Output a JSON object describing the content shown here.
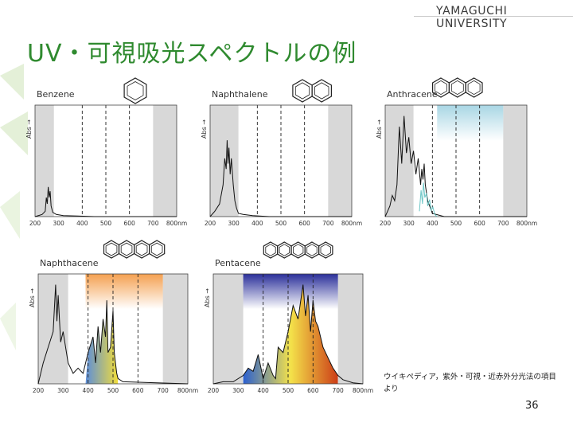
{
  "header": {
    "organization": "YAMAGUCHI UNIVERSITY"
  },
  "slide": {
    "title": "UV・可視吸光スペクトルの例",
    "source_note": "ウイキペディア，紫外・可視・近赤外分光法の項目より",
    "page_number": "36"
  },
  "colors": {
    "title": "#2f8a2f",
    "leaf": "#e4f0d8",
    "shade": "#d8d8d8"
  },
  "chart_data": [
    {
      "type": "line",
      "title": "Benzene",
      "ylabel": "Abs →",
      "xlabel": "",
      "x_ticks": [
        "200",
        "300",
        "400",
        "500",
        "600",
        "700",
        "800nm"
      ],
      "xlim": [
        200,
        800
      ],
      "shaded_ranges": [
        [
          200,
          280
        ],
        [
          700,
          800
        ]
      ],
      "dashed_lines": [
        400,
        500,
        600
      ],
      "color_bands": [],
      "series": [
        {
          "x": [
            200,
            230,
            243,
            248,
            252,
            256,
            260,
            264,
            268,
            275,
            290,
            320,
            380,
            450,
            550,
            650,
            750,
            800
          ],
          "y": [
            0,
            0.02,
            0.05,
            0.18,
            0.12,
            0.28,
            0.18,
            0.24,
            0.1,
            0.04,
            0.02,
            0.01,
            0.005,
            0,
            0,
            0,
            0,
            0
          ]
        }
      ],
      "fills": []
    },
    {
      "type": "line",
      "title": "Naphthalene",
      "ylabel": "Abs →",
      "xlabel": "",
      "x_ticks": [
        "200",
        "300",
        "400",
        "500",
        "600",
        "700",
        "800nm"
      ],
      "xlim": [
        200,
        800
      ],
      "shaded_ranges": [
        [
          200,
          320
        ],
        [
          700,
          800
        ]
      ],
      "dashed_lines": [
        400,
        500,
        600
      ],
      "color_bands": [],
      "series": [
        {
          "x": [
            200,
            220,
            240,
            255,
            262,
            268,
            272,
            276,
            280,
            285,
            290,
            298,
            305,
            312,
            320,
            340,
            380,
            450,
            550,
            800
          ],
          "y": [
            0,
            0.05,
            0.12,
            0.3,
            0.55,
            0.45,
            0.72,
            0.5,
            0.65,
            0.4,
            0.55,
            0.3,
            0.15,
            0.08,
            0.03,
            0.02,
            0.01,
            0,
            0,
            0
          ]
        }
      ],
      "fills": []
    },
    {
      "type": "line",
      "title": "Anthracene",
      "ylabel": "Abs →",
      "xlabel": "",
      "x_ticks": [
        "200",
        "300",
        "400",
        "500",
        "600",
        "700",
        "800nm"
      ],
      "xlim": [
        200,
        800
      ],
      "shaded_ranges": [
        [
          200,
          320
        ],
        [
          700,
          800
        ]
      ],
      "dashed_lines": [
        400,
        500,
        600
      ],
      "color_bands": [
        {
          "range": [
            420,
            700
          ],
          "color": "#a8d6e4",
          "direction": "down"
        }
      ],
      "series": [
        {
          "x": [
            200,
            210,
            220,
            230,
            240,
            250,
            260,
            270,
            280,
            290,
            300,
            310,
            320,
            330,
            340,
            350,
            355,
            360,
            365,
            370,
            380,
            400,
            450,
            800
          ],
          "y": [
            0,
            0.05,
            0.1,
            0.2,
            0.15,
            0.3,
            0.85,
            0.5,
            0.95,
            0.6,
            0.75,
            0.5,
            0.62,
            0.4,
            0.55,
            0.3,
            0.45,
            0.35,
            0.5,
            0.3,
            0.15,
            0.03,
            0,
            0
          ]
        },
        {
          "x": [
            345,
            352,
            358,
            362,
            368,
            375,
            380,
            388,
            395,
            402,
            410,
            420
          ],
          "y": [
            0.05,
            0.25,
            0.12,
            0.32,
            0.18,
            0.22,
            0.1,
            0.16,
            0.06,
            0.09,
            0.02,
            0
          ],
          "color": "#6cc6c6"
        }
      ],
      "fills": []
    },
    {
      "type": "line",
      "title": "Naphthacene",
      "ylabel": "Abs →",
      "xlabel": "",
      "x_ticks": [
        "200",
        "300",
        "400",
        "500",
        "600",
        "700",
        "800nm"
      ],
      "xlim": [
        200,
        800
      ],
      "shaded_ranges": [
        [
          200,
          320
        ],
        [
          700,
          800
        ]
      ],
      "dashed_lines": [
        400,
        500,
        600
      ],
      "color_bands": [
        {
          "range": [
            390,
            700
          ],
          "color": "#f4a050",
          "direction": "down"
        }
      ],
      "series": [
        {
          "x": [
            200,
            220,
            240,
            260,
            270,
            275,
            280,
            290,
            300,
            320,
            340,
            360,
            380,
            400,
            420,
            430,
            440,
            450,
            460,
            470,
            475,
            480,
            490,
            500,
            505,
            510,
            515,
            520,
            540,
            800
          ],
          "y": [
            0,
            0.2,
            0.35,
            0.5,
            0.95,
            0.6,
            0.85,
            0.4,
            0.5,
            0.2,
            0.1,
            0.15,
            0.1,
            0.3,
            0.45,
            0.2,
            0.55,
            0.3,
            0.62,
            0.45,
            0.8,
            0.3,
            0.35,
            0.7,
            0.3,
            0.2,
            0.1,
            0.05,
            0.02,
            0
          ]
        }
      ],
      "fills": [
        {
          "range": [
            390,
            520
          ],
          "gradient": [
            "#5d8ed9",
            "#f2dd3a"
          ]
        }
      ]
    },
    {
      "type": "line",
      "title": "Pentacene",
      "ylabel": "Abs →",
      "xlabel": "",
      "x_ticks": [
        "200",
        "300",
        "400",
        "500",
        "600",
        "700",
        "800nm"
      ],
      "xlim": [
        200,
        800
      ],
      "shaded_ranges": [
        [
          200,
          320
        ],
        [
          700,
          800
        ]
      ],
      "dashed_lines": [
        400,
        500,
        600
      ],
      "color_bands": [
        {
          "range": [
            320,
            700
          ],
          "color": "#2a2f9a",
          "direction": "down"
        }
      ],
      "series": [
        {
          "x": [
            200,
            240,
            280,
            320,
            340,
            360,
            380,
            400,
            420,
            440,
            450,
            460,
            480,
            500,
            520,
            540,
            560,
            570,
            580,
            590,
            600,
            610,
            620,
            640,
            660,
            680,
            700,
            720,
            760,
            800
          ],
          "y": [
            0,
            0.02,
            0.02,
            0.08,
            0.15,
            0.12,
            0.28,
            0.05,
            0.2,
            0.08,
            0.05,
            0.35,
            0.3,
            0.5,
            0.75,
            0.62,
            0.95,
            0.65,
            0.85,
            0.5,
            0.8,
            0.6,
            0.55,
            0.35,
            0.25,
            0.15,
            0.08,
            0.04,
            0.01,
            0
          ]
        }
      ],
      "fills": [
        {
          "range": [
            320,
            700
          ],
          "gradient": [
            "#2a5fd0",
            "#f4e24a",
            "#cc3d17"
          ]
        }
      ]
    }
  ]
}
